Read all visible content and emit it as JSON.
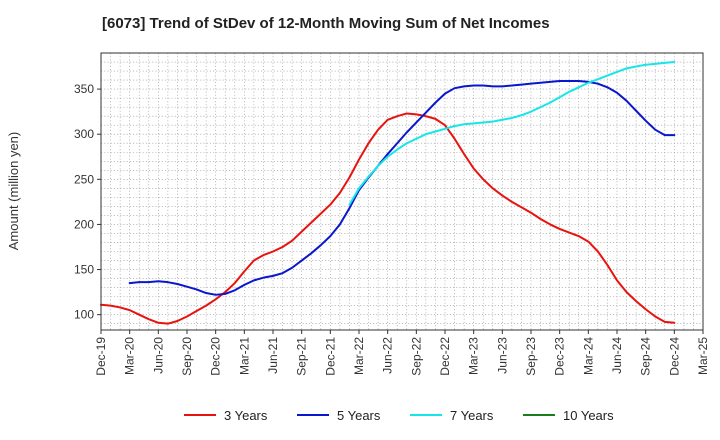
{
  "chart_data": {
    "type": "line",
    "title": "[6073]  Trend of StDev of 12-Month Moving Sum of Net Incomes",
    "xlabel": "",
    "ylabel": "Amount (million yen)",
    "ylim": [
      83,
      390
    ],
    "yticks": [
      100,
      150,
      200,
      250,
      300,
      350
    ],
    "xlim": [
      "Dec-19",
      "Mar-25"
    ],
    "xticks": [
      "Dec-19",
      "Mar-20",
      "Jun-20",
      "Sep-20",
      "Dec-20",
      "Mar-21",
      "Jun-21",
      "Sep-21",
      "Dec-21",
      "Mar-22",
      "Jun-22",
      "Sep-22",
      "Dec-22",
      "Mar-23",
      "Jun-23",
      "Sep-23",
      "Dec-23",
      "Mar-24",
      "Jun-24",
      "Sep-24",
      "Dec-24",
      "Mar-25"
    ],
    "grid": true,
    "legend_position": "bottom",
    "series": [
      {
        "name": "3 Years",
        "color": "#e8130f",
        "x": [
          "Dec-19",
          "Jan-20",
          "Feb-20",
          "Mar-20",
          "Apr-20",
          "May-20",
          "Jun-20",
          "Jul-20",
          "Aug-20",
          "Sep-20",
          "Oct-20",
          "Nov-20",
          "Dec-20",
          "Jan-21",
          "Feb-21",
          "Mar-21",
          "Apr-21",
          "May-21",
          "Jun-21",
          "Jul-21",
          "Aug-21",
          "Sep-21",
          "Oct-21",
          "Nov-21",
          "Dec-21",
          "Jan-22",
          "Feb-22",
          "Mar-22",
          "Apr-22",
          "May-22",
          "Jun-22",
          "Jul-22",
          "Aug-22",
          "Sep-22",
          "Oct-22",
          "Nov-22",
          "Dec-22",
          "Jan-23",
          "Feb-23",
          "Mar-23",
          "Apr-23",
          "May-23",
          "Jun-23",
          "Jul-23",
          "Aug-23",
          "Sep-23",
          "Oct-23",
          "Nov-23",
          "Dec-23",
          "Jan-24",
          "Feb-24",
          "Mar-24",
          "Apr-24",
          "May-24",
          "Jun-24",
          "Jul-24",
          "Aug-24",
          "Sep-24",
          "Oct-24",
          "Nov-24",
          "Dec-24"
        ],
        "values": [
          111,
          110,
          108,
          105,
          100,
          95,
          91,
          90,
          93,
          98,
          104,
          110,
          117,
          125,
          135,
          148,
          160,
          166,
          170,
          175,
          182,
          192,
          202,
          212,
          222,
          235,
          252,
          272,
          290,
          305,
          316,
          320,
          323,
          322,
          320,
          317,
          310,
          295,
          278,
          262,
          250,
          240,
          232,
          225,
          219,
          213,
          206,
          200,
          195,
          191,
          187,
          181,
          170,
          155,
          138,
          125,
          115,
          106,
          98,
          92,
          91
        ]
      },
      {
        "name": "5 Years",
        "color": "#0a17cc",
        "x": [
          "Mar-20",
          "Apr-20",
          "May-20",
          "Jun-20",
          "Jul-20",
          "Aug-20",
          "Sep-20",
          "Oct-20",
          "Nov-20",
          "Dec-20",
          "Jan-21",
          "Feb-21",
          "Mar-21",
          "Apr-21",
          "May-21",
          "Jun-21",
          "Jul-21",
          "Aug-21",
          "Sep-21",
          "Oct-21",
          "Nov-21",
          "Dec-21",
          "Jan-22",
          "Feb-22",
          "Mar-22",
          "Apr-22",
          "May-22",
          "Jun-22",
          "Jul-22",
          "Aug-22",
          "Sep-22",
          "Oct-22",
          "Nov-22",
          "Dec-22",
          "Jan-23",
          "Feb-23",
          "Mar-23",
          "Apr-23",
          "May-23",
          "Jun-23",
          "Jul-23",
          "Aug-23",
          "Sep-23",
          "Oct-23",
          "Nov-23",
          "Dec-23",
          "Jan-24",
          "Feb-24",
          "Mar-24",
          "Apr-24",
          "May-24",
          "Jun-24",
          "Jul-24",
          "Aug-24",
          "Sep-24",
          "Oct-24",
          "Nov-24",
          "Dec-24"
        ],
        "values": [
          135,
          136,
          136,
          137,
          136,
          134,
          131,
          128,
          124,
          122,
          123,
          127,
          133,
          138,
          141,
          143,
          146,
          152,
          160,
          168,
          177,
          187,
          200,
          218,
          238,
          252,
          265,
          278,
          290,
          302,
          313,
          324,
          335,
          345,
          351,
          353,
          354,
          354,
          353,
          353,
          354,
          355,
          356,
          357,
          358,
          359,
          359,
          359,
          358,
          356,
          352,
          346,
          337,
          326,
          315,
          305,
          299,
          299
        ]
      },
      {
        "name": "7 Years",
        "color": "#16e6e8",
        "x": [
          "Feb-22",
          "Mar-22",
          "Apr-22",
          "May-22",
          "Jun-22",
          "Jul-22",
          "Aug-22",
          "Sep-22",
          "Oct-22",
          "Nov-22",
          "Dec-22",
          "Jan-23",
          "Feb-23",
          "Mar-23",
          "Apr-23",
          "May-23",
          "Jun-23",
          "Jul-23",
          "Aug-23",
          "Sep-23",
          "Oct-23",
          "Nov-23",
          "Dec-23",
          "Jan-24",
          "Feb-24",
          "Mar-24",
          "Apr-24",
          "May-24",
          "Jun-24",
          "Jul-24",
          "Aug-24",
          "Sep-24",
          "Oct-24",
          "Nov-24",
          "Dec-24"
        ],
        "values": [
          222,
          240,
          253,
          265,
          275,
          283,
          290,
          295,
          300,
          303,
          306,
          309,
          311,
          312,
          313,
          314,
          316,
          318,
          321,
          325,
          330,
          335,
          341,
          347,
          352,
          357,
          361,
          365,
          369,
          373,
          375,
          377,
          378,
          379,
          380
        ]
      },
      {
        "name": "10 Years",
        "color": "#1a7c1a",
        "x": [],
        "values": []
      }
    ]
  }
}
